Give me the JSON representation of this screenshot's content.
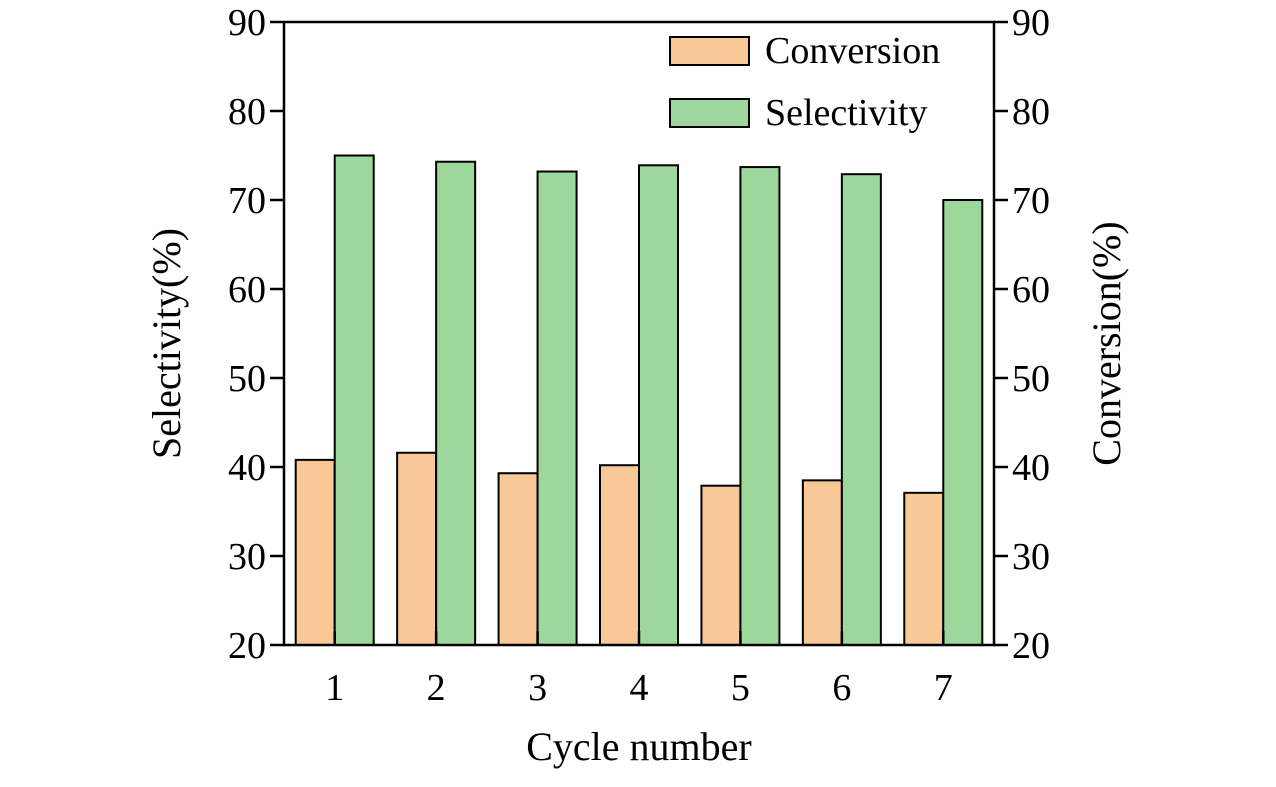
{
  "chart_data": {
    "type": "bar",
    "categories": [
      "1",
      "2",
      "3",
      "4",
      "5",
      "6",
      "7"
    ],
    "series": [
      {
        "name": "Conversion",
        "values": [
          40.8,
          41.6,
          39.3,
          40.2,
          37.9,
          38.5,
          37.1
        ],
        "color": "#f9c897",
        "axis": "right"
      },
      {
        "name": "Selectivity",
        "values": [
          75.0,
          74.3,
          73.2,
          73.9,
          73.7,
          72.9,
          70.0
        ],
        "color": "#9ed79c",
        "axis": "left"
      }
    ],
    "xlabel": "Cycle number",
    "ylabel_left": "Selectivity(%)",
    "ylabel_right": "Conversion(%)",
    "ylim": [
      20,
      90
    ],
    "yticks": [
      "20",
      "30",
      "40",
      "50",
      "60",
      "70",
      "80",
      "90"
    ],
    "legend_position": "top-right",
    "grid": false
  }
}
